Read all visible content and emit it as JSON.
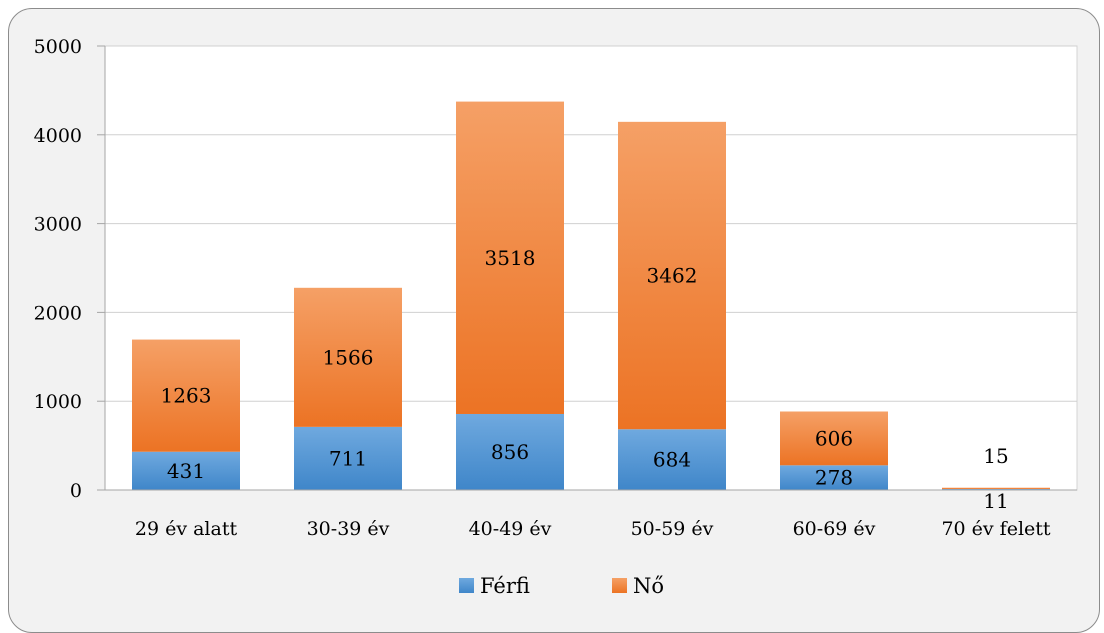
{
  "chart_data": {
    "type": "bar",
    "stacked": true,
    "categories": [
      "29 év alatt",
      "30-39 év",
      "40-49 év",
      "50-59 év",
      "60-69 év",
      "70 év felett"
    ],
    "series": [
      {
        "name": "Férfi",
        "values": [
          431,
          711,
          856,
          684,
          278,
          11
        ],
        "color": "#5b9bd5"
      },
      {
        "name": "Nő",
        "values": [
          1263,
          1566,
          3518,
          3462,
          606,
          15
        ],
        "color": "#ed7d31"
      }
    ],
    "ylim": [
      0,
      5000
    ],
    "yticks": [
      0,
      1000,
      2000,
      3000,
      4000,
      5000
    ],
    "grid": true,
    "legend": "bottom"
  }
}
